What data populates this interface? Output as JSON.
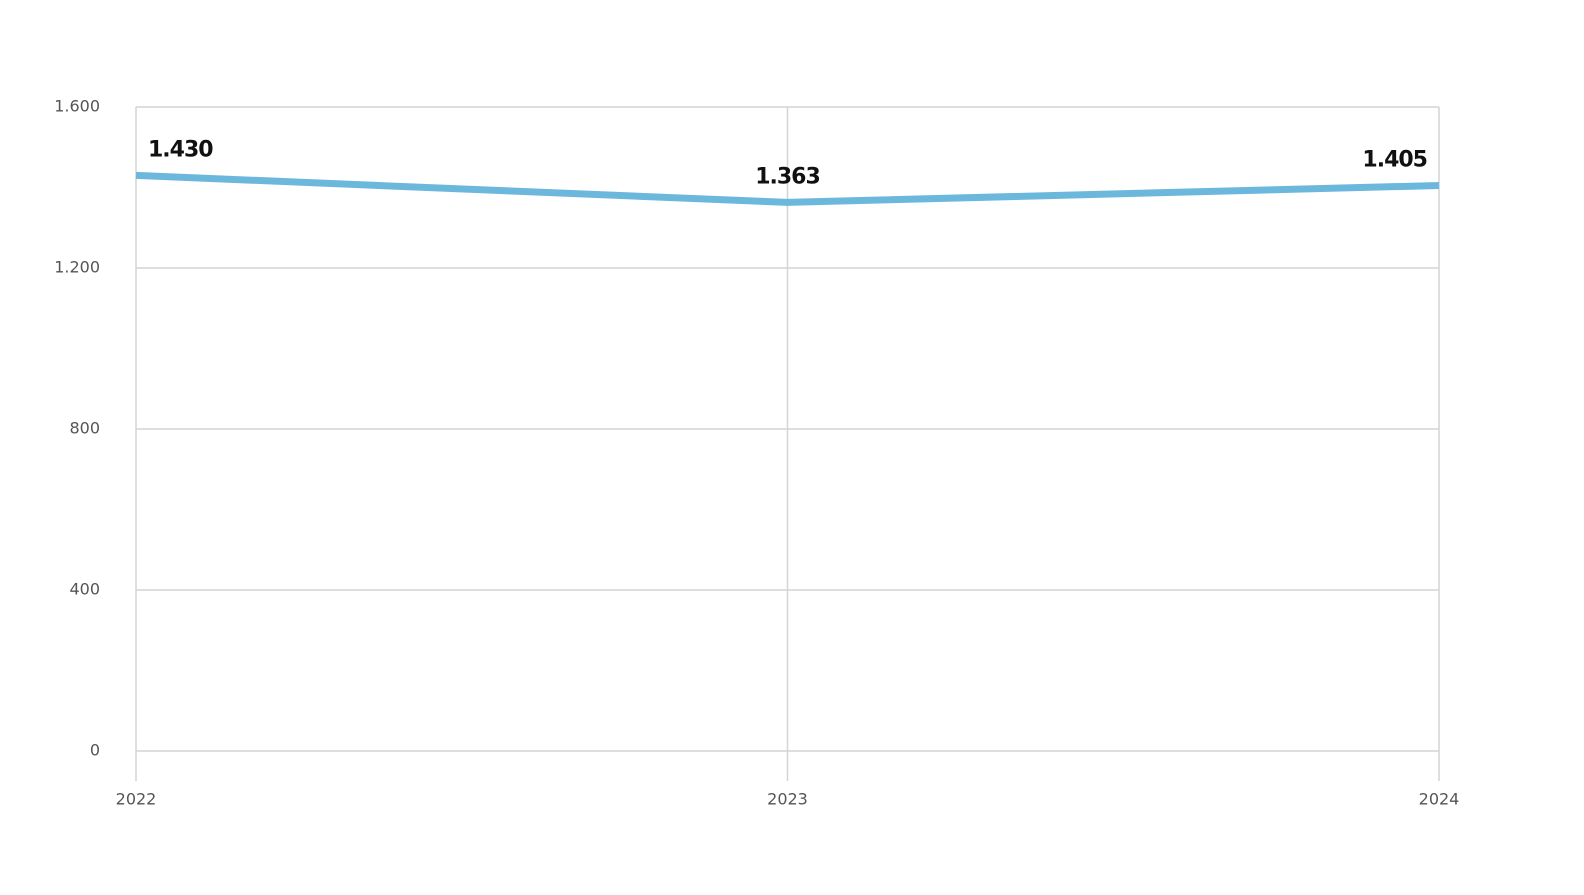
{
  "chart_data": {
    "type": "line",
    "categories": [
      "2022",
      "2023",
      "2024"
    ],
    "series": [
      {
        "color": "#6cb8dc",
        "values": [
          1430,
          1363,
          1405
        ],
        "value_labels": [
          "1.430",
          "1.363",
          "1.405"
        ]
      }
    ],
    "ylim": [
      0,
      1600
    ],
    "yticks": [
      0,
      400,
      800,
      {
        "value": 1200,
        "label": "1.200"
      },
      {
        "value": 1600,
        "label": "1.600"
      }
    ],
    "grid": true
  }
}
